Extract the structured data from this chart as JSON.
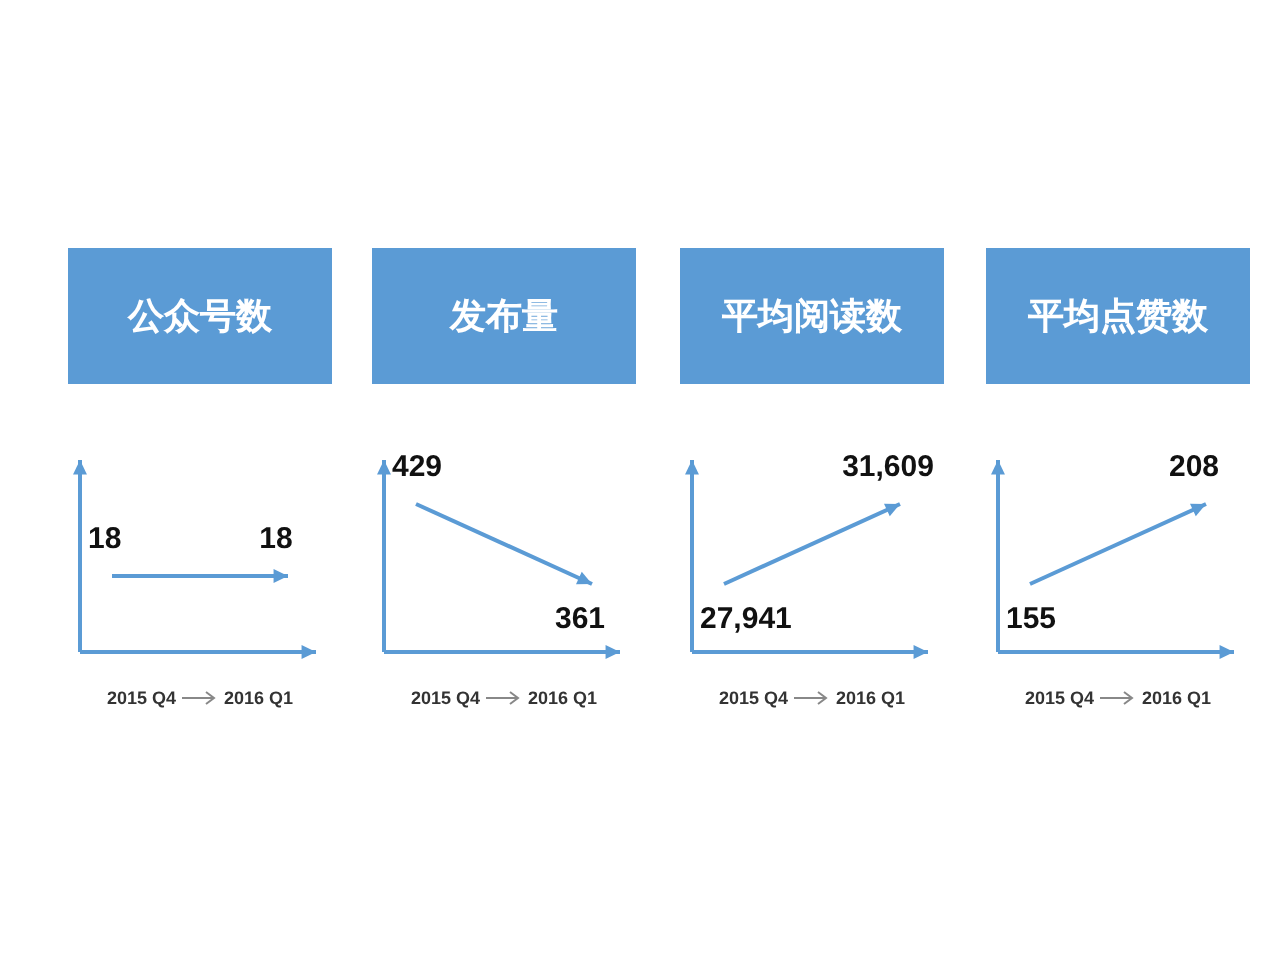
{
  "chart_data": [
    {
      "type": "other",
      "title": "公众号数",
      "categories": [
        "2015 Q4",
        "2016 Q1"
      ],
      "values": [
        18,
        18
      ],
      "value_labels": [
        "18",
        "18"
      ],
      "color": "#5b9bd5"
    },
    {
      "type": "other",
      "title": "发布量",
      "categories": [
        "2015 Q4",
        "2016 Q1"
      ],
      "values": [
        429,
        361
      ],
      "value_labels": [
        "429",
        "361"
      ],
      "color": "#5b9bd5"
    },
    {
      "type": "other",
      "title": "平均阅读数",
      "categories": [
        "2015 Q4",
        "2016 Q1"
      ],
      "values": [
        27941,
        31609
      ],
      "value_labels": [
        "27,941",
        "31,609"
      ],
      "color": "#5b9bd5"
    },
    {
      "type": "other",
      "title": "平均点赞数",
      "categories": [
        "2015 Q4",
        "2016 Q1"
      ],
      "values": [
        155,
        208
      ],
      "value_labels": [
        "155",
        "208"
      ],
      "color": "#5b9bd5"
    }
  ]
}
